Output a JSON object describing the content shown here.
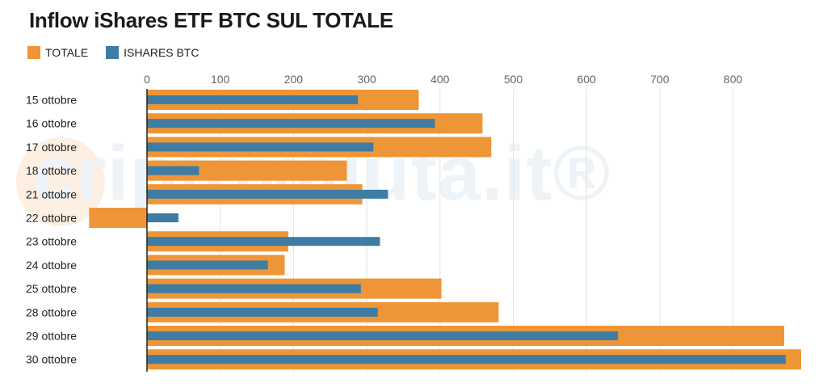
{
  "title": "Inflow iShares ETF BTC SUL TOTALE",
  "watermark": "criptovaluta.it®",
  "colors": {
    "totale": "#EE9637",
    "ishares": "#3E7CA4",
    "grid": "#e3e3e3",
    "axis": "#222222"
  },
  "chart_data": {
    "type": "bar",
    "orientation": "horizontal",
    "categories": [
      "15 ottobre",
      "16 ottobre",
      "17 ottobre",
      "18 ottobre",
      "21 ottobre",
      "22 ottobre",
      "23 ottobre",
      "24 ottobre",
      "25 ottobre",
      "28 ottobre",
      "29 ottobre",
      "30 ottobre"
    ],
    "series": [
      {
        "name": "TOTALE",
        "values": [
          371,
          458,
          470,
          273,
          294,
          -79,
          193,
          188,
          402,
          480,
          870,
          893
        ]
      },
      {
        "name": "ISHARES BTC",
        "values": [
          288,
          393,
          309,
          71,
          329,
          43,
          318,
          165,
          292,
          315,
          643,
          872
        ]
      }
    ],
    "x_ticks": [
      0,
      100,
      200,
      300,
      400,
      500,
      600,
      700,
      800
    ],
    "xlim": [
      -80,
      900
    ],
    "grid": true,
    "legend_position": "top-left"
  }
}
